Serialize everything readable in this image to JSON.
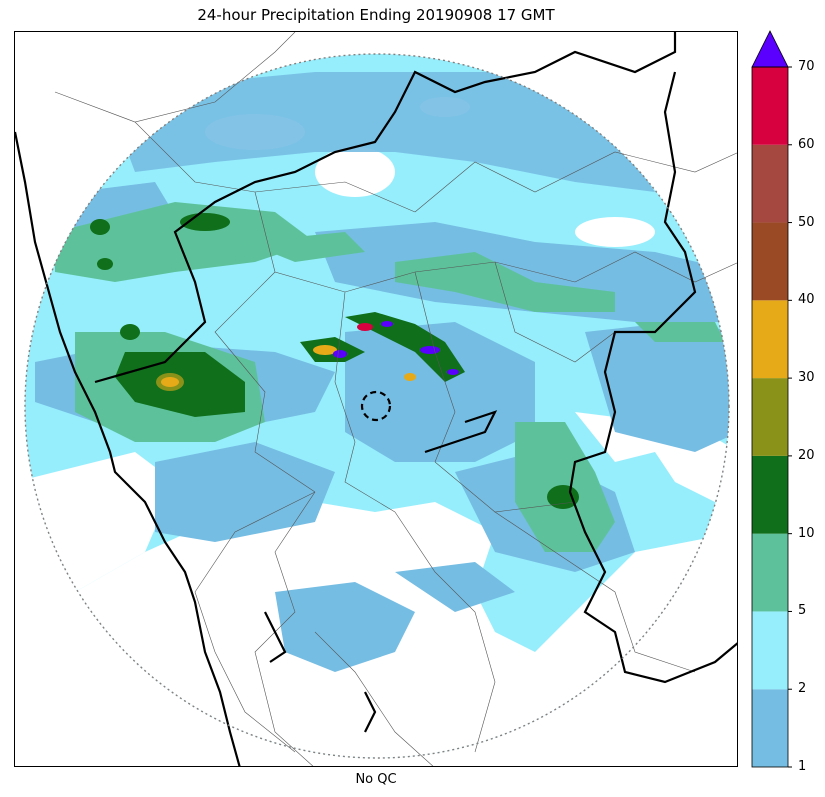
{
  "title": "24-hour Precipitation Ending 20190908 17 GMT",
  "xlabel": "No QC",
  "colorbar": {
    "levels": [
      {
        "from": 1,
        "to": 2,
        "color": "#75bde3"
      },
      {
        "from": 2,
        "to": 5,
        "color": "#96eefc"
      },
      {
        "from": 5,
        "to": 10,
        "color": "#5dc29b"
      },
      {
        "from": 10,
        "to": 20,
        "color": "#0f6f1b"
      },
      {
        "from": 20,
        "to": 30,
        "color": "#8a9219"
      },
      {
        "from": 30,
        "to": 40,
        "color": "#e6aa18"
      },
      {
        "from": 40,
        "to": 50,
        "color": "#9a4b26"
      },
      {
        "from": 50,
        "to": 60,
        "color": "#a5483f"
      },
      {
        "from": 60,
        "to": 70,
        "color": "#d7013f"
      }
    ],
    "over_color": "#5a00ff",
    "ticks": [
      "1",
      "2",
      "5",
      "10",
      "20",
      "30",
      "40",
      "50",
      "60",
      "70"
    ]
  },
  "colors": {
    "coast_border": "#000000",
    "district_border": "#555555",
    "range_ring": "#808080",
    "frame": "#000000"
  }
}
